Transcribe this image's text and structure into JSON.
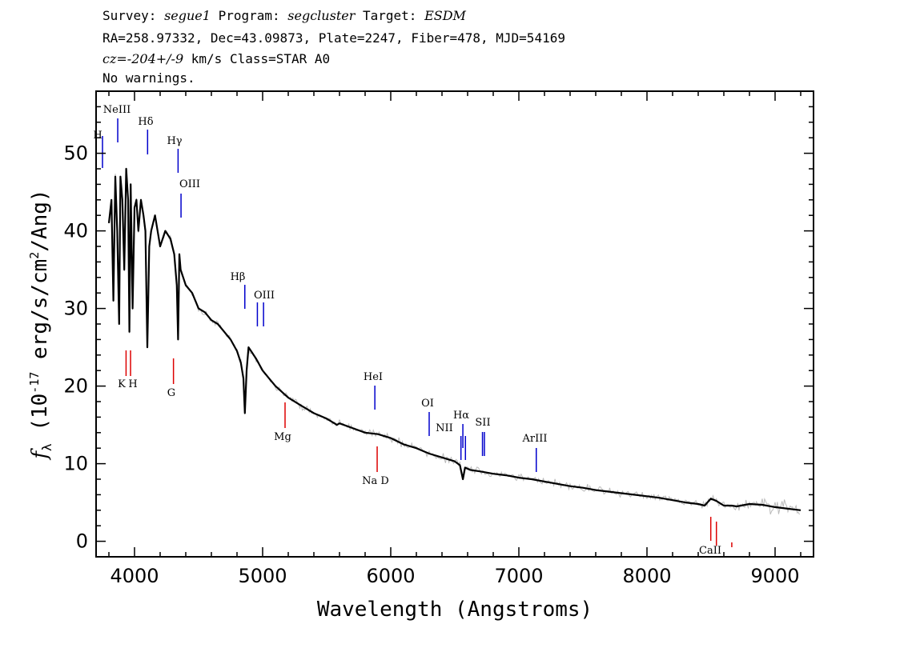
{
  "header": {
    "survey_label": "Survey:",
    "survey": "segue1",
    "program_label": "Program:",
    "program": "segcluster",
    "target_label": "Target:",
    "target": "ESDM",
    "line2": "RA=258.97332, Dec=43.09873, Plate=2247, Fiber=478, MJD=54169",
    "cz_label": "cz=",
    "cz": "-204+/-9",
    "cz_units": "km/s",
    "class_text": "Class=STAR A0",
    "warnings": "No warnings."
  },
  "chart_data": {
    "type": "line",
    "xlabel": "Wavelength (Angstroms)",
    "ylabel": "f_λ (10^-17 erg/s/cm^2/Ang)",
    "xlim": [
      3700,
      9300
    ],
    "ylim": [
      -2,
      58
    ],
    "x_ticks": [
      4000,
      5000,
      6000,
      7000,
      8000,
      9000
    ],
    "y_ticks": [
      0,
      10,
      20,
      30,
      40,
      50
    ],
    "grid": false,
    "colors": {
      "flux": "#000000",
      "noise": "#bbbbbb",
      "emission": "#0000cc",
      "absorption": "#dd0000"
    },
    "series": [
      {
        "role": "flux",
        "x": [
          3800,
          3820,
          3835,
          3850,
          3865,
          3880,
          3890,
          3905,
          3920,
          3935,
          3950,
          3960,
          3970,
          3985,
          4000,
          4015,
          4030,
          4050,
          4070,
          4085,
          4100,
          4115,
          4130,
          4160,
          4200,
          4240,
          4280,
          4310,
          4330,
          4340,
          4350,
          4360,
          4380,
          4400,
          4450,
          4500,
          4550,
          4600,
          4650,
          4700,
          4750,
          4800,
          4830,
          4850,
          4861,
          4875,
          4890,
          4910,
          4950,
          5000,
          5050,
          5100,
          5200,
          5300,
          5400,
          5500,
          5580,
          5600,
          5700,
          5800,
          5900,
          6000,
          6100,
          6200,
          6300,
          6400,
          6500,
          6540,
          6563,
          6580,
          6620,
          6700,
          6800,
          6900,
          7000,
          7100,
          7200,
          7300,
          7400,
          7500,
          7600,
          7700,
          7800,
          7900,
          8000,
          8100,
          8200,
          8300,
          8400,
          8450,
          8498,
          8542,
          8600,
          8662,
          8700,
          8800,
          8900,
          9000,
          9100,
          9200
        ],
        "y": [
          41,
          44,
          31,
          47,
          40,
          28,
          47,
          44,
          35,
          48,
          44,
          27,
          46,
          30,
          43,
          44,
          40,
          44,
          42,
          40,
          25,
          38,
          40,
          42,
          38,
          40,
          39,
          37,
          33,
          26,
          37,
          35,
          34,
          33,
          32,
          30,
          29.5,
          28.5,
          28,
          27,
          26,
          24.5,
          23,
          21,
          16.5,
          22,
          25,
          24.5,
          23.5,
          22,
          21,
          20,
          18.5,
          17.5,
          16.5,
          15.8,
          15,
          15.2,
          14.6,
          14,
          13.8,
          13.3,
          12.5,
          12,
          11.3,
          10.8,
          10.3,
          9.8,
          8,
          9.5,
          9.2,
          9,
          8.7,
          8.5,
          8.2,
          8,
          7.7,
          7.4,
          7.1,
          6.9,
          6.6,
          6.4,
          6.2,
          6,
          5.8,
          5.6,
          5.3,
          5,
          4.8,
          4.6,
          5.5,
          5.2,
          4.6,
          4.6,
          4.5,
          4.8,
          4.7,
          4.4,
          4.2,
          4.0
        ]
      }
    ],
    "line_markers": [
      {
        "label": "H",
        "wave": 3750,
        "kind": "emission"
      },
      {
        "label": "NeIII",
        "wave": 3869,
        "kind": "emission"
      },
      {
        "label": "Hδ",
        "wave": 4102,
        "kind": "emission"
      },
      {
        "label": "Hγ",
        "wave": 4340,
        "kind": "emission"
      },
      {
        "label": "OIII",
        "wave": 4363,
        "kind": "emission"
      },
      {
        "label": "Hβ",
        "wave": 4861,
        "kind": "emission"
      },
      {
        "label": "OIII",
        "wave": 4959,
        "kind": "emission"
      },
      {
        "label": "OIII",
        "wave": 5007,
        "kind": "emission"
      },
      {
        "label": "HeI",
        "wave": 5876,
        "kind": "emission"
      },
      {
        "label": "OI",
        "wave": 6300,
        "kind": "emission"
      },
      {
        "label": "NII",
        "wave": 6548,
        "kind": "emission"
      },
      {
        "label": "Hα",
        "wave": 6563,
        "kind": "emission"
      },
      {
        "label": "NII",
        "wave": 6583,
        "kind": "emission"
      },
      {
        "label": "SII",
        "wave": 6716,
        "kind": "emission"
      },
      {
        "label": "SII",
        "wave": 6731,
        "kind": "emission"
      },
      {
        "label": "ArIII",
        "wave": 7136,
        "kind": "emission"
      },
      {
        "label": "K",
        "wave": 3934,
        "kind": "absorption"
      },
      {
        "label": "H",
        "wave": 3969,
        "kind": "absorption"
      },
      {
        "label": "G",
        "wave": 4304,
        "kind": "absorption"
      },
      {
        "label": "Mg",
        "wave": 5175,
        "kind": "absorption"
      },
      {
        "label": "Na D",
        "wave": 5894,
        "kind": "absorption"
      },
      {
        "label": "CaII",
        "wave": 8498,
        "kind": "absorption"
      },
      {
        "label": "CaII",
        "wave": 8542,
        "kind": "absorption"
      },
      {
        "label": "CaII",
        "wave": 8662,
        "kind": "absorption"
      }
    ]
  }
}
